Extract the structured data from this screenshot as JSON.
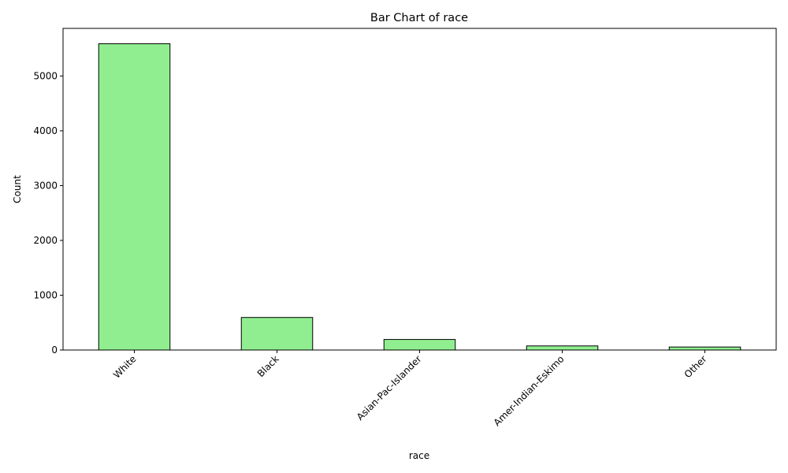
{
  "chart_data": {
    "type": "bar",
    "title": "Bar Chart of race",
    "xlabel": "race",
    "ylabel": "Count",
    "categories": [
      "White",
      "Black",
      "Asian-Pac-Islander",
      "Amer-Indian-Eskimo",
      "Other"
    ],
    "values": [
      5589,
      594,
      193,
      75,
      55
    ],
    "ylim": [
      0,
      5869
    ],
    "yticks": [
      0,
      1000,
      2000,
      3000,
      4000,
      5000
    ],
    "bar_color": "#90ee90",
    "bar_edge_color": "#000000",
    "grid": false,
    "legend": "none"
  }
}
